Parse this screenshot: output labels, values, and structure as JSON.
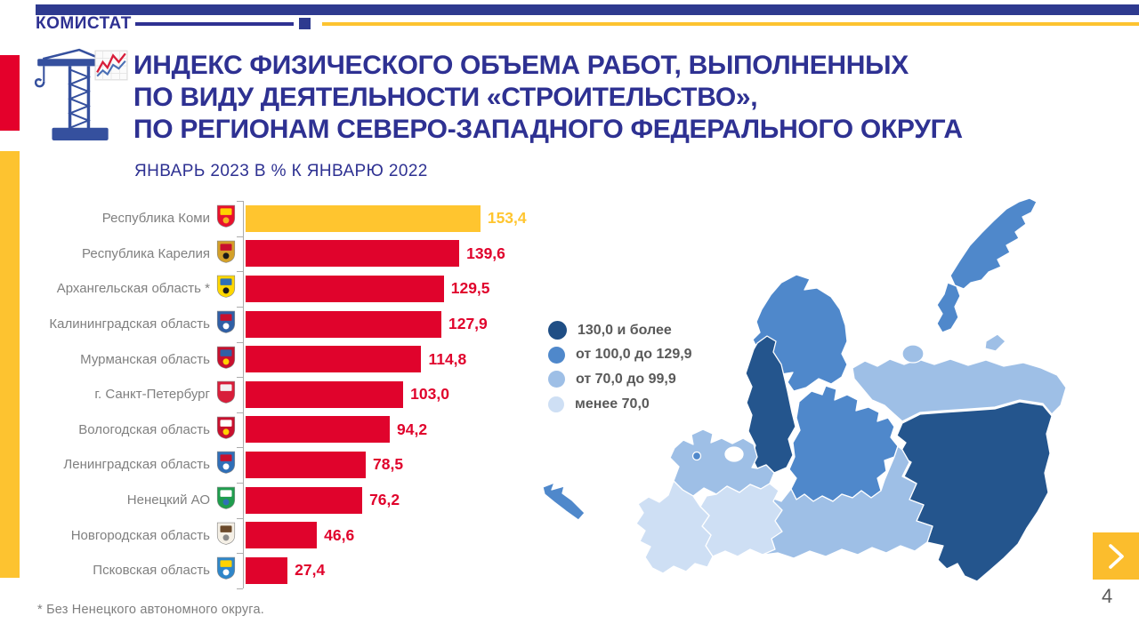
{
  "header": {
    "logo": "КОМИСТАТ",
    "navy": "#2E3192",
    "yellow": "#FDC330"
  },
  "title": {
    "line1": "ИНДЕКС ФИЗИЧЕСКОГО ОБЪЕМА РАБОТ, ВЫПОЛНЕННЫХ",
    "line2": "ПО ВИДУ ДЕЯТЕЛЬНОСТИ «СТРОИТЕЛЬСТВО»,",
    "line3": "ПО РЕГИОНАМ СЕВЕРО-ЗАПАДНОГО ФЕДЕРАЛЬНОГО ОКРУГА",
    "subtitle": "ЯНВАРЬ 2023 В % К ЯНВАРЮ 2022"
  },
  "footnote": "* Без Ненецкого автономного округа.",
  "page_number": "4",
  "chart_data": {
    "type": "bar",
    "orientation": "horizontal",
    "title": "Индекс физического объема работ по виду деятельности «Строительство», январь 2023 в % к январю 2022",
    "xlim": [
      0,
      160
    ],
    "grid": false,
    "highlight_color": "#FFC52F",
    "bar_color": "#E0032C",
    "categories": [
      "Республика Коми",
      "Республика Карелия",
      "Архангельская область *",
      "Калининградская область",
      "Мурманская область",
      "г. Санкт-Петербург",
      "Вологодская область",
      "Ленинградская область",
      "Ненецкий АО",
      "Новгородская область",
      "Псковская область"
    ],
    "values": [
      153.4,
      139.6,
      129.5,
      127.9,
      114.8,
      103.0,
      94.2,
      78.5,
      76.2,
      46.6,
      27.4
    ],
    "regions": [
      {
        "label": "Республика Коми",
        "value": 153.4,
        "display": "153,4",
        "color": "#FFC52F",
        "icon": "coat-of-arms-komi",
        "icon_colors": [
          "#e8112d",
          "#ffd200",
          "#f5b31d"
        ]
      },
      {
        "label": "Республика Карелия",
        "value": 139.6,
        "display": "139,6",
        "color": "#E0032C",
        "icon": "coat-of-arms-karelia",
        "icon_colors": [
          "#d3a029",
          "#c8102e",
          "#1a1a1a"
        ]
      },
      {
        "label": "Архангельская область *",
        "value": 129.5,
        "display": "129,5",
        "color": "#E0032C",
        "icon": "coat-of-arms-arkhangelsk",
        "icon_colors": [
          "#ffd700",
          "#2f6fb7",
          "#1a1a1a"
        ]
      },
      {
        "label": "Калининградская область",
        "value": 127.9,
        "display": "127,9",
        "color": "#E0032C",
        "icon": "coat-of-arms-kaliningrad",
        "icon_colors": [
          "#2f5fa5",
          "#c8102e",
          "#ffffff"
        ]
      },
      {
        "label": "Мурманская область",
        "value": 114.8,
        "display": "114,8",
        "color": "#E0032C",
        "icon": "coat-of-arms-murmansk",
        "icon_colors": [
          "#c8102e",
          "#2f5fa5",
          "#ffd200"
        ]
      },
      {
        "label": "г. Санкт-Петербург",
        "value": 103.0,
        "display": "103,0",
        "color": "#E0032C",
        "icon": "coat-of-arms-saint-petersburg",
        "icon_colors": [
          "#d81e3a",
          "#f2f2f2",
          "#d81e3a"
        ]
      },
      {
        "label": "Вологодская область",
        "value": 94.2,
        "display": "94,2",
        "color": "#E0032C",
        "icon": "coat-of-arms-vologda",
        "icon_colors": [
          "#c8102e",
          "#ffffff",
          "#ffd200"
        ]
      },
      {
        "label": "Ленинградская область",
        "value": 78.5,
        "display": "78,5",
        "color": "#E0032C",
        "icon": "coat-of-arms-leningrad",
        "icon_colors": [
          "#2f6fb7",
          "#c8102e",
          "#ffffff"
        ]
      },
      {
        "label": "Ненецкий АО",
        "value": 76.2,
        "display": "76,2",
        "color": "#E0032C",
        "icon": "coat-of-arms-nenets",
        "icon_colors": [
          "#1f9d4d",
          "#ffffff",
          "#2f6fb7"
        ]
      },
      {
        "label": "Новгородская область",
        "value": 46.6,
        "display": "46,6",
        "color": "#E0032C",
        "icon": "coat-of-arms-novgorod",
        "icon_colors": [
          "#f5f0e6",
          "#6b4a2b",
          "#8a8a8a"
        ]
      },
      {
        "label": "Псковская область",
        "value": 27.4,
        "display": "27,4",
        "color": "#E0032C",
        "icon": "coat-of-arms-pskov",
        "icon_colors": [
          "#2f86c9",
          "#ffd200",
          "#ffffff"
        ]
      }
    ]
  },
  "legend": {
    "position": "middle-left-of-map",
    "items": [
      {
        "label": "130,0 и более",
        "color": "#1F4E85",
        "size": 21
      },
      {
        "label": "от 100,0 до 129,9",
        "color": "#4F88CB",
        "size": 19
      },
      {
        "label": "от 70,0 до 99,9",
        "color": "#9EBFE6",
        "size": 19
      },
      {
        "label": "менее 70,0",
        "color": "#CEDFF4",
        "size": 18
      }
    ]
  },
  "map": {
    "class_colors": {
      "high": "#24558D",
      "mid": "#4F88CB",
      "low": "#9EBFE6",
      "lowest": "#CEDFF4"
    },
    "regions": [
      {
        "id": "murmansk",
        "name": "Мурманская область",
        "class": "mid"
      },
      {
        "id": "novaya-zemlya-north",
        "name": "Новая Земля (Архангельская область)",
        "class": "mid"
      },
      {
        "id": "novaya-zemlya-south",
        "name": "Новая Земля (Архангельская область)",
        "class": "mid"
      },
      {
        "id": "karelia",
        "name": "Республика Карелия",
        "class": "high"
      },
      {
        "id": "arkhangelsk",
        "name": "Архангельская область",
        "class": "mid"
      },
      {
        "id": "nenets",
        "name": "Ненецкий АО",
        "class": "low"
      },
      {
        "id": "komi",
        "name": "Республика Коми",
        "class": "high"
      },
      {
        "id": "vologda",
        "name": "Вологодская область",
        "class": "low"
      },
      {
        "id": "leningrad",
        "name": "Ленинградская область",
        "class": "low"
      },
      {
        "id": "novgorod",
        "name": "Новгородская область",
        "class": "lowest"
      },
      {
        "id": "pskov",
        "name": "Псковская область",
        "class": "lowest"
      },
      {
        "id": "kaliningrad",
        "name": "Калининградская область",
        "class": "mid"
      },
      {
        "id": "saint-petersburg",
        "name": "г. Санкт-Петербург",
        "class": "mid"
      },
      {
        "id": "kolguev",
        "name": "о. Колгуев (Ненецкий АО)",
        "class": "low"
      },
      {
        "id": "vaygach",
        "name": "о. Вайгач (Ненецкий АО)",
        "class": "low"
      }
    ]
  },
  "nav": {
    "next_label": "›"
  }
}
